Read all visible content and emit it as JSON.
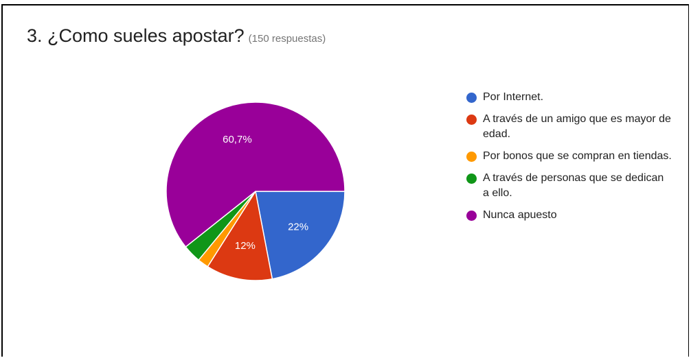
{
  "header": {
    "title": "3. ¿Como sueles apostar?",
    "responses": "(150 respuestas)"
  },
  "chart_data": {
    "type": "pie",
    "title": "3. ¿Como sueles apostar?",
    "slices": [
      {
        "name": "Por Internet.",
        "value": 22.0,
        "label": "22%",
        "color": "#3366cc"
      },
      {
        "name": "A través de un amigo que es mayor de edad.",
        "value": 12.0,
        "label": "12%",
        "color": "#dc3912"
      },
      {
        "name": "Por bonos que se compran en tiendas.",
        "value": 2.0,
        "label": "",
        "color": "#ff9900"
      },
      {
        "name": "A través de personas que se dedican a ello.",
        "value": 3.3,
        "label": "",
        "color": "#109618"
      },
      {
        "name": "Nunca apuesto",
        "value": 60.7,
        "label": "60,7%",
        "color": "#990099"
      }
    ],
    "legend_position": "right"
  }
}
